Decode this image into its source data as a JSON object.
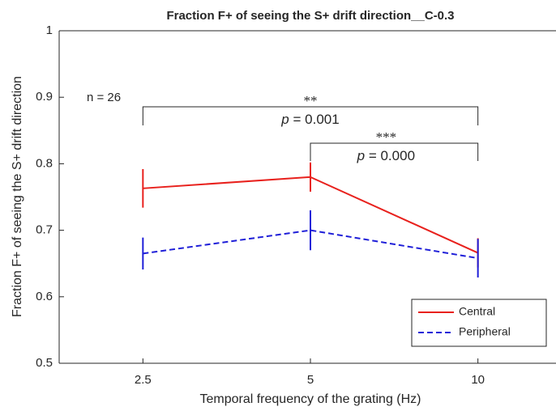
{
  "chart_data": {
    "type": "line",
    "title": "Fraction F+ of seeing the S+ drift direction__C-0.3",
    "x_label": "Temporal frequency of the grating (Hz)",
    "y_label": "Fraction F+ of seeing the S+ drift direction",
    "categories": [
      "2.5",
      "5",
      "10"
    ],
    "series": [
      {
        "name": "Central",
        "color": "#e8211d",
        "dash": "solid",
        "values": [
          0.763,
          0.78,
          0.666
        ],
        "errors": [
          0.029,
          0.022,
          0.022
        ]
      },
      {
        "name": "Peripheral",
        "color": "#1f1fd8",
        "dash": "dashed",
        "values": [
          0.665,
          0.7,
          0.658
        ],
        "errors": [
          0.024,
          0.03,
          0.029
        ]
      }
    ],
    "ylim": [
      0.5,
      1
    ],
    "yticks": [
      0.5,
      0.6,
      0.7,
      0.8,
      0.9,
      1
    ],
    "legend": "lower right",
    "annotations": {
      "n": "n = 26",
      "brackets": [
        {
          "from": 0,
          "to": 2,
          "stars": "**",
          "p": "p",
          "text": "= 0.001"
        },
        {
          "from": 1,
          "to": 2,
          "stars": "***",
          "p": "p",
          "text": "= 0.000"
        }
      ]
    }
  }
}
